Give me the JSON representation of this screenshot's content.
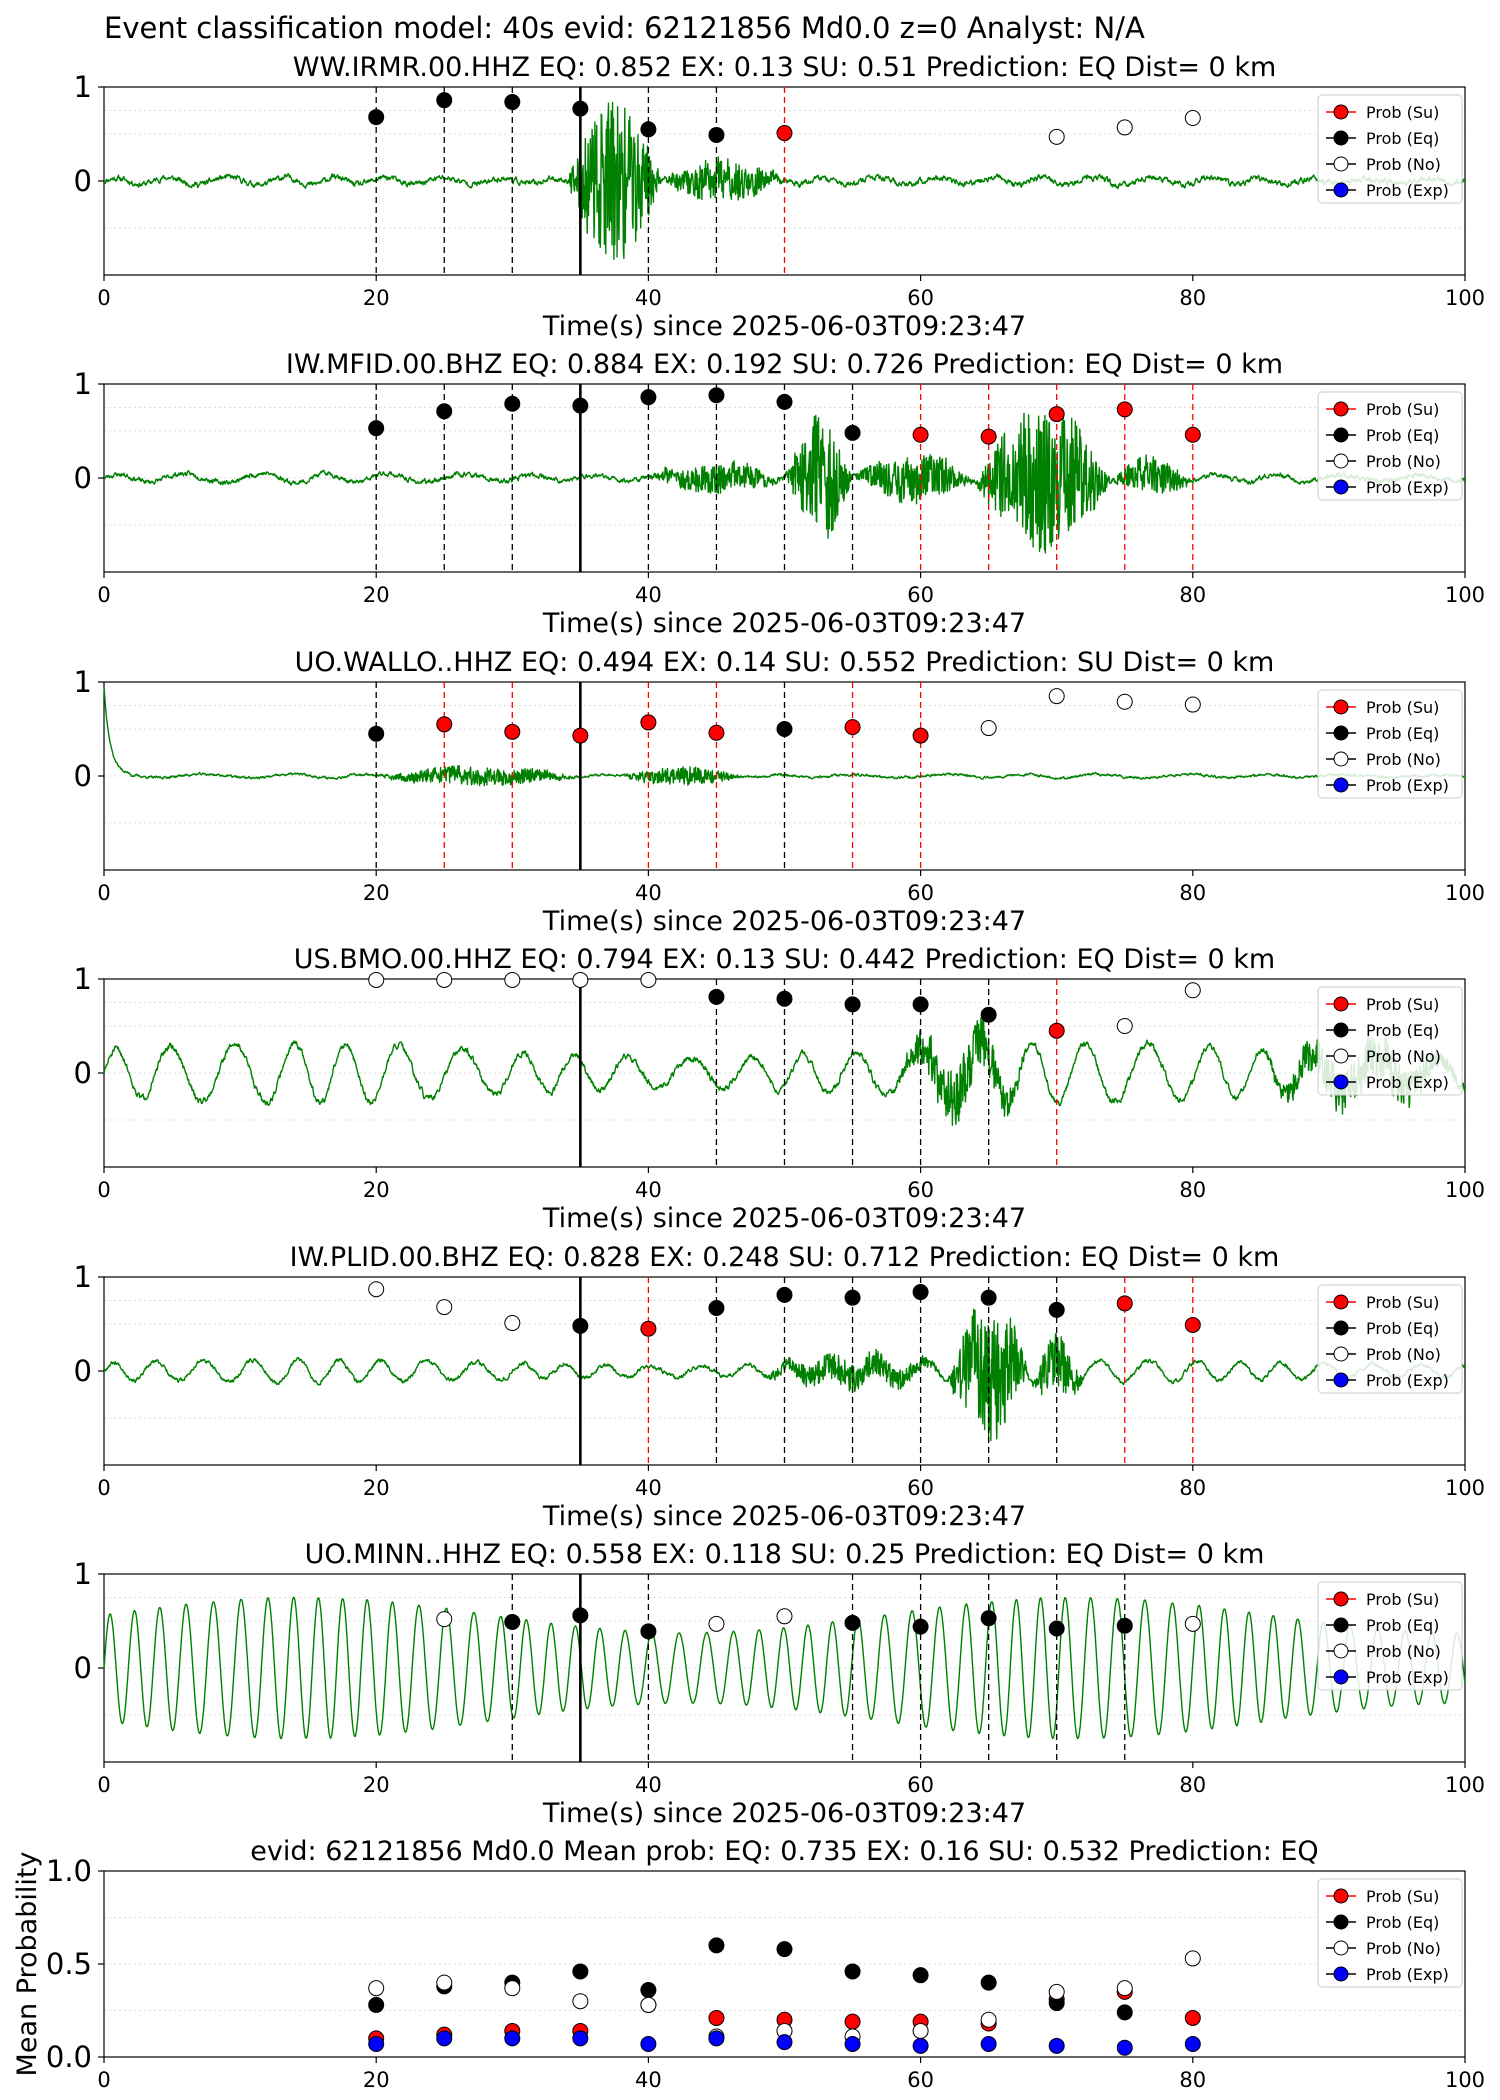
{
  "suptitle": "Event classification model: 40s evid: 62121856 Md0.0 z=0 Analyst: N/A",
  "colors": {
    "trace": "#008000",
    "su": "#ff0000",
    "eq": "#000000",
    "no": "#ffffff",
    "exp": "#0000ff",
    "su_line": "#ff0000",
    "eq_line": "#000000"
  },
  "legend": [
    "Prob (Su)",
    "Prob (Eq)",
    "Prob (No)",
    "Prob (Exp)"
  ],
  "chart_data": [
    {
      "type": "line",
      "title": "WW.IRMR.00.HHZ   EQ: 0.852  EX: 0.13  SU: 0.51   Prediction: EQ    Dist= 0 km",
      "xlabel": "Time(s) since 2025-06-03T09:23:47",
      "xlim": [
        0,
        100
      ],
      "ylim": [
        -1,
        1
      ],
      "xticks": [
        0,
        20,
        40,
        60,
        80,
        100
      ],
      "yticks": [
        0,
        1
      ],
      "grid": "horizontal dotted",
      "legend_position": "top-right",
      "pick_time": 35,
      "waveform": {
        "base_amp": 0.07,
        "lf_amp": 0.04,
        "period": 4,
        "seed": 11,
        "bursts": [
          [
            34,
            41,
            0.85
          ],
          [
            41,
            50,
            0.22
          ]
        ]
      },
      "windows": [
        {
          "t": 20,
          "label": "eq",
          "prob": 0.68
        },
        {
          "t": 25,
          "label": "eq",
          "prob": 0.86
        },
        {
          "t": 30,
          "label": "eq",
          "prob": 0.84
        },
        {
          "t": 35,
          "label": "eq",
          "prob": 0.77
        },
        {
          "t": 40,
          "label": "eq",
          "prob": 0.55
        },
        {
          "t": 45,
          "label": "eq",
          "prob": 0.49
        },
        {
          "t": 50,
          "label": "su",
          "prob": 0.51
        },
        {
          "t": 70,
          "label": "no",
          "prob": 0.47
        },
        {
          "t": 75,
          "label": "no",
          "prob": 0.57
        },
        {
          "t": 80,
          "label": "no",
          "prob": 0.67
        }
      ]
    },
    {
      "type": "line",
      "title": "IW.MFID.00.BHZ   EQ: 0.884  EX: 0.192  SU: 0.726   Prediction: EQ    Dist= 0 km",
      "xlabel": "Time(s) since 2025-06-03T09:23:47",
      "xlim": [
        0,
        100
      ],
      "ylim": [
        -1,
        1
      ],
      "xticks": [
        0,
        20,
        40,
        60,
        80,
        100
      ],
      "yticks": [
        0,
        1
      ],
      "grid": "horizontal dotted",
      "legend_position": "top-right",
      "pick_time": 35,
      "waveform": {
        "base_amp": 0.06,
        "lf_amp": 0.05,
        "period": 5,
        "seed": 23,
        "bursts": [
          [
            40,
            50,
            0.15
          ],
          [
            50,
            55,
            0.7
          ],
          [
            55,
            64,
            0.25
          ],
          [
            64,
            74,
            0.75
          ],
          [
            74,
            80,
            0.2
          ]
        ]
      },
      "windows": [
        {
          "t": 20,
          "label": "eq",
          "prob": 0.53
        },
        {
          "t": 25,
          "label": "eq",
          "prob": 0.71
        },
        {
          "t": 30,
          "label": "eq",
          "prob": 0.79
        },
        {
          "t": 35,
          "label": "eq",
          "prob": 0.77
        },
        {
          "t": 40,
          "label": "eq",
          "prob": 0.86
        },
        {
          "t": 45,
          "label": "eq",
          "prob": 0.88
        },
        {
          "t": 50,
          "label": "eq",
          "prob": 0.81
        },
        {
          "t": 55,
          "label": "eq",
          "prob": 0.48
        },
        {
          "t": 60,
          "label": "su",
          "prob": 0.46
        },
        {
          "t": 65,
          "label": "su",
          "prob": 0.44
        },
        {
          "t": 70,
          "label": "su",
          "prob": 0.68
        },
        {
          "t": 75,
          "label": "su",
          "prob": 0.73
        },
        {
          "t": 80,
          "label": "su",
          "prob": 0.46
        }
      ]
    },
    {
      "type": "line",
      "title": "UO.WALLO..HHZ   EQ: 0.494  EX: 0.14  SU: 0.552   Prediction: SU    Dist= 0 km",
      "xlabel": "Time(s) since 2025-06-03T09:23:47",
      "xlim": [
        0,
        100
      ],
      "ylim": [
        -1,
        1
      ],
      "xticks": [
        0,
        20,
        40,
        60,
        80,
        100
      ],
      "yticks": [
        0,
        1
      ],
      "grid": "horizontal dotted",
      "legend_position": "top-right",
      "pick_time": 35,
      "waveform": {
        "base_amp": 0.03,
        "lf_amp": 0.02,
        "period": 6,
        "seed": 37,
        "start_spike": true,
        "bursts": [
          [
            20,
            35,
            0.1
          ],
          [
            38,
            47,
            0.1
          ]
        ]
      },
      "windows": [
        {
          "t": 20,
          "label": "eq",
          "prob": 0.45
        },
        {
          "t": 25,
          "label": "su",
          "prob": 0.55
        },
        {
          "t": 30,
          "label": "su",
          "prob": 0.47
        },
        {
          "t": 35,
          "label": "su",
          "prob": 0.43
        },
        {
          "t": 40,
          "label": "su",
          "prob": 0.57
        },
        {
          "t": 45,
          "label": "su",
          "prob": 0.46
        },
        {
          "t": 50,
          "label": "eq",
          "prob": 0.5
        },
        {
          "t": 55,
          "label": "su",
          "prob": 0.52
        },
        {
          "t": 60,
          "label": "su",
          "prob": 0.43
        },
        {
          "t": 65,
          "label": "no",
          "prob": 0.51
        },
        {
          "t": 70,
          "label": "no",
          "prob": 0.85
        },
        {
          "t": 75,
          "label": "no",
          "prob": 0.79
        },
        {
          "t": 80,
          "label": "no",
          "prob": 0.76
        }
      ]
    },
    {
      "type": "line",
      "title": "US.BMO.00.HHZ   EQ: 0.794  EX: 0.13  SU: 0.442   Prediction: EQ    Dist= 0 km",
      "xlabel": "Time(s) since 2025-06-03T09:23:47",
      "xlim": [
        0,
        100
      ],
      "ylim": [
        -1,
        1
      ],
      "xticks": [
        0,
        20,
        40,
        60,
        80,
        100
      ],
      "yticks": [
        0,
        1
      ],
      "grid": "horizontal dotted",
      "legend_position": "top-right",
      "pick_time": 35,
      "waveform": {
        "base_amp": 0.08,
        "lf_amp": 0.32,
        "period": 4.2,
        "seed": 51,
        "bursts": [
          [
            58,
            68,
            0.3
          ],
          [
            85,
            100,
            0.25
          ]
        ]
      },
      "windows": [
        {
          "t": 20,
          "label": "no",
          "prob": 0.99
        },
        {
          "t": 25,
          "label": "no",
          "prob": 0.99
        },
        {
          "t": 30,
          "label": "no",
          "prob": 0.99
        },
        {
          "t": 35,
          "label": "no",
          "prob": 0.99
        },
        {
          "t": 40,
          "label": "no",
          "prob": 0.99
        },
        {
          "t": 45,
          "label": "eq",
          "prob": 0.81
        },
        {
          "t": 50,
          "label": "eq",
          "prob": 0.79
        },
        {
          "t": 55,
          "label": "eq",
          "prob": 0.73
        },
        {
          "t": 60,
          "label": "eq",
          "prob": 0.73
        },
        {
          "t": 65,
          "label": "eq",
          "prob": 0.62
        },
        {
          "t": 70,
          "label": "su",
          "prob": 0.45
        },
        {
          "t": 75,
          "label": "no",
          "prob": 0.5
        },
        {
          "t": 80,
          "label": "no",
          "prob": 0.88
        }
      ]
    },
    {
      "type": "line",
      "title": "IW.PLID.00.BHZ   EQ: 0.828  EX: 0.248  SU: 0.712   Prediction: EQ    Dist= 0 km",
      "xlabel": "Time(s) since 2025-06-03T09:23:47",
      "xlim": [
        0,
        100
      ],
      "ylim": [
        -1,
        1
      ],
      "xticks": [
        0,
        20,
        40,
        60,
        80,
        100
      ],
      "yticks": [
        0,
        1
      ],
      "grid": "horizontal dotted",
      "legend_position": "top-right",
      "pick_time": 35,
      "waveform": {
        "base_amp": 0.05,
        "lf_amp": 0.12,
        "period": 3.3,
        "seed": 67,
        "bursts": [
          [
            48,
            62,
            0.15
          ],
          [
            62,
            68,
            0.7
          ],
          [
            68,
            72,
            0.3
          ]
        ]
      },
      "windows": [
        {
          "t": 20,
          "label": "no",
          "prob": 0.87
        },
        {
          "t": 25,
          "label": "no",
          "prob": 0.68
        },
        {
          "t": 30,
          "label": "no",
          "prob": 0.51
        },
        {
          "t": 35,
          "label": "eq",
          "prob": 0.48
        },
        {
          "t": 40,
          "label": "su",
          "prob": 0.45
        },
        {
          "t": 45,
          "label": "eq",
          "prob": 0.67
        },
        {
          "t": 50,
          "label": "eq",
          "prob": 0.81
        },
        {
          "t": 55,
          "label": "eq",
          "prob": 0.78
        },
        {
          "t": 60,
          "label": "eq",
          "prob": 0.84
        },
        {
          "t": 65,
          "label": "eq",
          "prob": 0.78
        },
        {
          "t": 70,
          "label": "eq",
          "prob": 0.65
        },
        {
          "t": 75,
          "label": "su",
          "prob": 0.72
        },
        {
          "t": 80,
          "label": "su",
          "prob": 0.49
        }
      ]
    },
    {
      "type": "line",
      "title": "UO.MINN..HHZ   EQ: 0.558  EX: 0.118  SU: 0.25   Prediction: EQ    Dist= 0 km",
      "xlabel": "Time(s) since 2025-06-03T09:23:47",
      "xlim": [
        0,
        100
      ],
      "ylim": [
        -1,
        1
      ],
      "xticks": [
        0,
        20,
        40,
        60,
        80,
        100
      ],
      "yticks": [
        0,
        1
      ],
      "grid": "horizontal dotted",
      "legend_position": "top-right",
      "pick_time": 35,
      "waveform": {
        "base_amp": 0.01,
        "lf_amp": 0.75,
        "period": 1.9,
        "seed": 83,
        "bursts": []
      },
      "windows": [
        {
          "t": 25,
          "label": "no",
          "prob": 0.52
        },
        {
          "t": 30,
          "label": "eq",
          "prob": 0.49
        },
        {
          "t": 35,
          "label": "eq",
          "prob": 0.56
        },
        {
          "t": 40,
          "label": "eq",
          "prob": 0.39
        },
        {
          "t": 45,
          "label": "no",
          "prob": 0.47
        },
        {
          "t": 50,
          "label": "no",
          "prob": 0.55
        },
        {
          "t": 55,
          "label": "eq",
          "prob": 0.48
        },
        {
          "t": 60,
          "label": "eq",
          "prob": 0.44
        },
        {
          "t": 65,
          "label": "eq",
          "prob": 0.53
        },
        {
          "t": 70,
          "label": "eq",
          "prob": 0.42
        },
        {
          "t": 75,
          "label": "eq",
          "prob": 0.45
        },
        {
          "t": 80,
          "label": "no",
          "prob": 0.47
        }
      ]
    },
    {
      "type": "scatter",
      "title": "evid: 62121856  Md0.0   Mean prob:   EQ: 0.735  EX: 0.16  SU: 0.532   Prediction: EQ",
      "ylabel": "Mean Probability",
      "xlim": [
        0,
        100
      ],
      "ylim": [
        0,
        1
      ],
      "xticks": [
        0,
        20,
        40,
        60,
        80,
        100
      ],
      "yticks": [
        0.0,
        0.5,
        1.0
      ],
      "ytick_labels": [
        "0.0",
        "0.5",
        "1.0"
      ],
      "grid": "horizontal dotted",
      "legend_position": "top-right",
      "x": [
        20,
        25,
        30,
        35,
        40,
        45,
        50,
        55,
        60,
        65,
        70,
        75,
        80
      ],
      "series": [
        {
          "name": "Prob (Su)",
          "key": "su",
          "values": [
            0.1,
            0.12,
            0.14,
            0.14,
            0.28,
            0.21,
            0.2,
            0.19,
            0.19,
            0.18,
            0.31,
            0.35,
            0.21
          ]
        },
        {
          "name": "Prob (Eq)",
          "key": "eq",
          "values": [
            0.28,
            0.38,
            0.4,
            0.46,
            0.36,
            0.6,
            0.58,
            0.46,
            0.44,
            0.4,
            0.29,
            0.24,
            null
          ]
        },
        {
          "name": "Prob (No)",
          "key": "no",
          "values": [
            0.37,
            0.4,
            0.37,
            0.3,
            0.28,
            0.11,
            0.14,
            0.11,
            0.14,
            0.2,
            0.35,
            0.37,
            0.53
          ]
        },
        {
          "name": "Prob (Exp)",
          "key": "exp",
          "values": [
            0.07,
            0.1,
            0.1,
            0.1,
            0.07,
            0.1,
            0.08,
            0.07,
            0.06,
            0.07,
            0.06,
            0.05,
            0.07
          ]
        }
      ]
    }
  ]
}
